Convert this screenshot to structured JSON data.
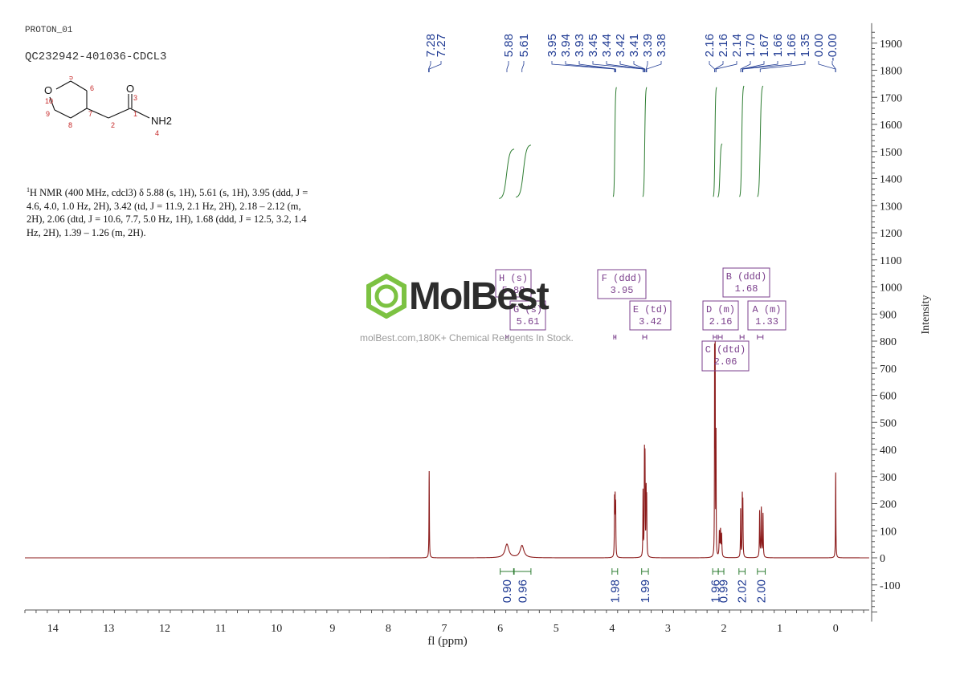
{
  "header": {
    "experiment": "PROTON_01",
    "sample": "QC232942-401036-CDCL3"
  },
  "molecule": {
    "atom_labels": [
      "O",
      "5",
      "6",
      "10",
      "9",
      "8",
      "7",
      "2",
      "1",
      "3",
      "O",
      "NH2",
      "4"
    ]
  },
  "description": {
    "nucleus_sup": "1",
    "text": "H NMR (400 MHz, cdcl3) δ 5.88 (s, 1H), 5.61 (s, 1H), 3.95 (ddd, J = 4.6, 4.0, 1.0 Hz, 2H), 3.42 (td, J = 11.9, 2.1 Hz, 2H), 2.18 – 2.12 (m, 2H), 2.06 (dtd, J = 10.6, 7.7, 5.0 Hz, 1H), 1.68 (ddd, J = 12.5, 3.2, 1.4 Hz, 2H), 1.39 – 1.26 (m, 2H)."
  },
  "watermark": {
    "brand": "MolBest",
    "tagline": "molBest.com,180K+ Chemical Reagents In Stock."
  },
  "chart_data": {
    "type": "line",
    "xlabel": "fl (ppm)",
    "ylabel": "Intensity",
    "xlim": [
      14.5,
      -0.6
    ],
    "ylim": [
      -200,
      1950
    ],
    "x_ticks": [
      14,
      13,
      12,
      11,
      10,
      9,
      8,
      7,
      6,
      5,
      4,
      3,
      2,
      1,
      0
    ],
    "y_ticks": [
      -100,
      0,
      100,
      200,
      300,
      400,
      500,
      600,
      700,
      800,
      900,
      1000,
      1100,
      1200,
      1300,
      1400,
      1500,
      1600,
      1700,
      1800,
      1900
    ],
    "colors": {
      "spectrum": "#8b1a1a",
      "integral": "#2e7d32",
      "peak_label": "#1f3a93",
      "multiplet": "#7b3f8c"
    },
    "peaks": [
      {
        "ppm": 7.27,
        "height": 320,
        "width": 0.004
      },
      {
        "ppm": 5.88,
        "height": 50,
        "width": 0.04
      },
      {
        "ppm": 5.61,
        "height": 45,
        "width": 0.04
      },
      {
        "ppm": 3.955,
        "height": 200,
        "width": 0.004
      },
      {
        "ppm": 3.945,
        "height": 195,
        "width": 0.004
      },
      {
        "ppm": 3.935,
        "height": 180,
        "width": 0.004
      },
      {
        "ppm": 3.445,
        "height": 240,
        "width": 0.004
      },
      {
        "ppm": 3.42,
        "height": 360,
        "width": 0.004
      },
      {
        "ppm": 3.41,
        "height": 340,
        "width": 0.004
      },
      {
        "ppm": 3.39,
        "height": 230,
        "width": 0.004
      },
      {
        "ppm": 3.38,
        "height": 200,
        "width": 0.004
      },
      {
        "ppm": 2.165,
        "height": 750,
        "width": 0.003
      },
      {
        "ppm": 2.155,
        "height": 720,
        "width": 0.003
      },
      {
        "ppm": 2.14,
        "height": 440,
        "width": 0.003
      },
      {
        "ppm": 2.08,
        "height": 90,
        "width": 0.006
      },
      {
        "ppm": 2.06,
        "height": 95,
        "width": 0.006
      },
      {
        "ppm": 2.04,
        "height": 80,
        "width": 0.006
      },
      {
        "ppm": 1.7,
        "height": 180,
        "width": 0.004
      },
      {
        "ppm": 1.67,
        "height": 220,
        "width": 0.004
      },
      {
        "ppm": 1.66,
        "height": 190,
        "width": 0.004
      },
      {
        "ppm": 1.36,
        "height": 170,
        "width": 0.005
      },
      {
        "ppm": 1.33,
        "height": 180,
        "width": 0.005
      },
      {
        "ppm": 1.3,
        "height": 160,
        "width": 0.005
      },
      {
        "ppm": 0.0,
        "height": 320,
        "width": 0.004
      }
    ],
    "peak_labels_group1": [
      "7.28",
      "7.27"
    ],
    "peak_labels_group2": [
      "5.88",
      "5.61"
    ],
    "peak_labels_group3": [
      "3.95",
      "3.94",
      "3.93",
      "3.45",
      "3.44",
      "3.42",
      "3.41",
      "3.39",
      "3.38"
    ],
    "peak_labels_group4": [
      "2.16",
      "2.16",
      "2.14",
      "1.70",
      "1.67",
      "1.66",
      "1.66",
      "1.35",
      "0.00",
      "-0.00"
    ],
    "integrals": [
      {
        "label": "0.90",
        "from": 6.0,
        "to": 5.76
      },
      {
        "label": "0.96",
        "from": 5.75,
        "to": 5.45
      },
      {
        "label": "1.98",
        "from": 4.0,
        "to": 3.9
      },
      {
        "label": "1.99",
        "from": 3.47,
        "to": 3.35
      },
      {
        "label": "1.96",
        "from": 2.2,
        "to": 2.1
      },
      {
        "label": "0.99",
        "from": 2.1,
        "to": 2.0
      },
      {
        "label": "2.02",
        "from": 1.73,
        "to": 1.62
      },
      {
        "label": "2.00",
        "from": 1.4,
        "to": 1.26
      }
    ],
    "multiplets": [
      {
        "letter": "H",
        "kind": "(s)",
        "shift": "5.88"
      },
      {
        "letter": "G",
        "kind": "(s)",
        "shift": "5.61"
      },
      {
        "letter": "F",
        "kind": "(ddd)",
        "shift": "3.95"
      },
      {
        "letter": "E",
        "kind": "(td)",
        "shift": "3.42"
      },
      {
        "letter": "B",
        "kind": "(ddd)",
        "shift": "1.68"
      },
      {
        "letter": "D",
        "kind": "(m)",
        "shift": "2.16"
      },
      {
        "letter": "A",
        "kind": "(m)",
        "shift": "1.33"
      },
      {
        "letter": "C",
        "kind": "(dtd)",
        "shift": "2.06"
      }
    ]
  }
}
